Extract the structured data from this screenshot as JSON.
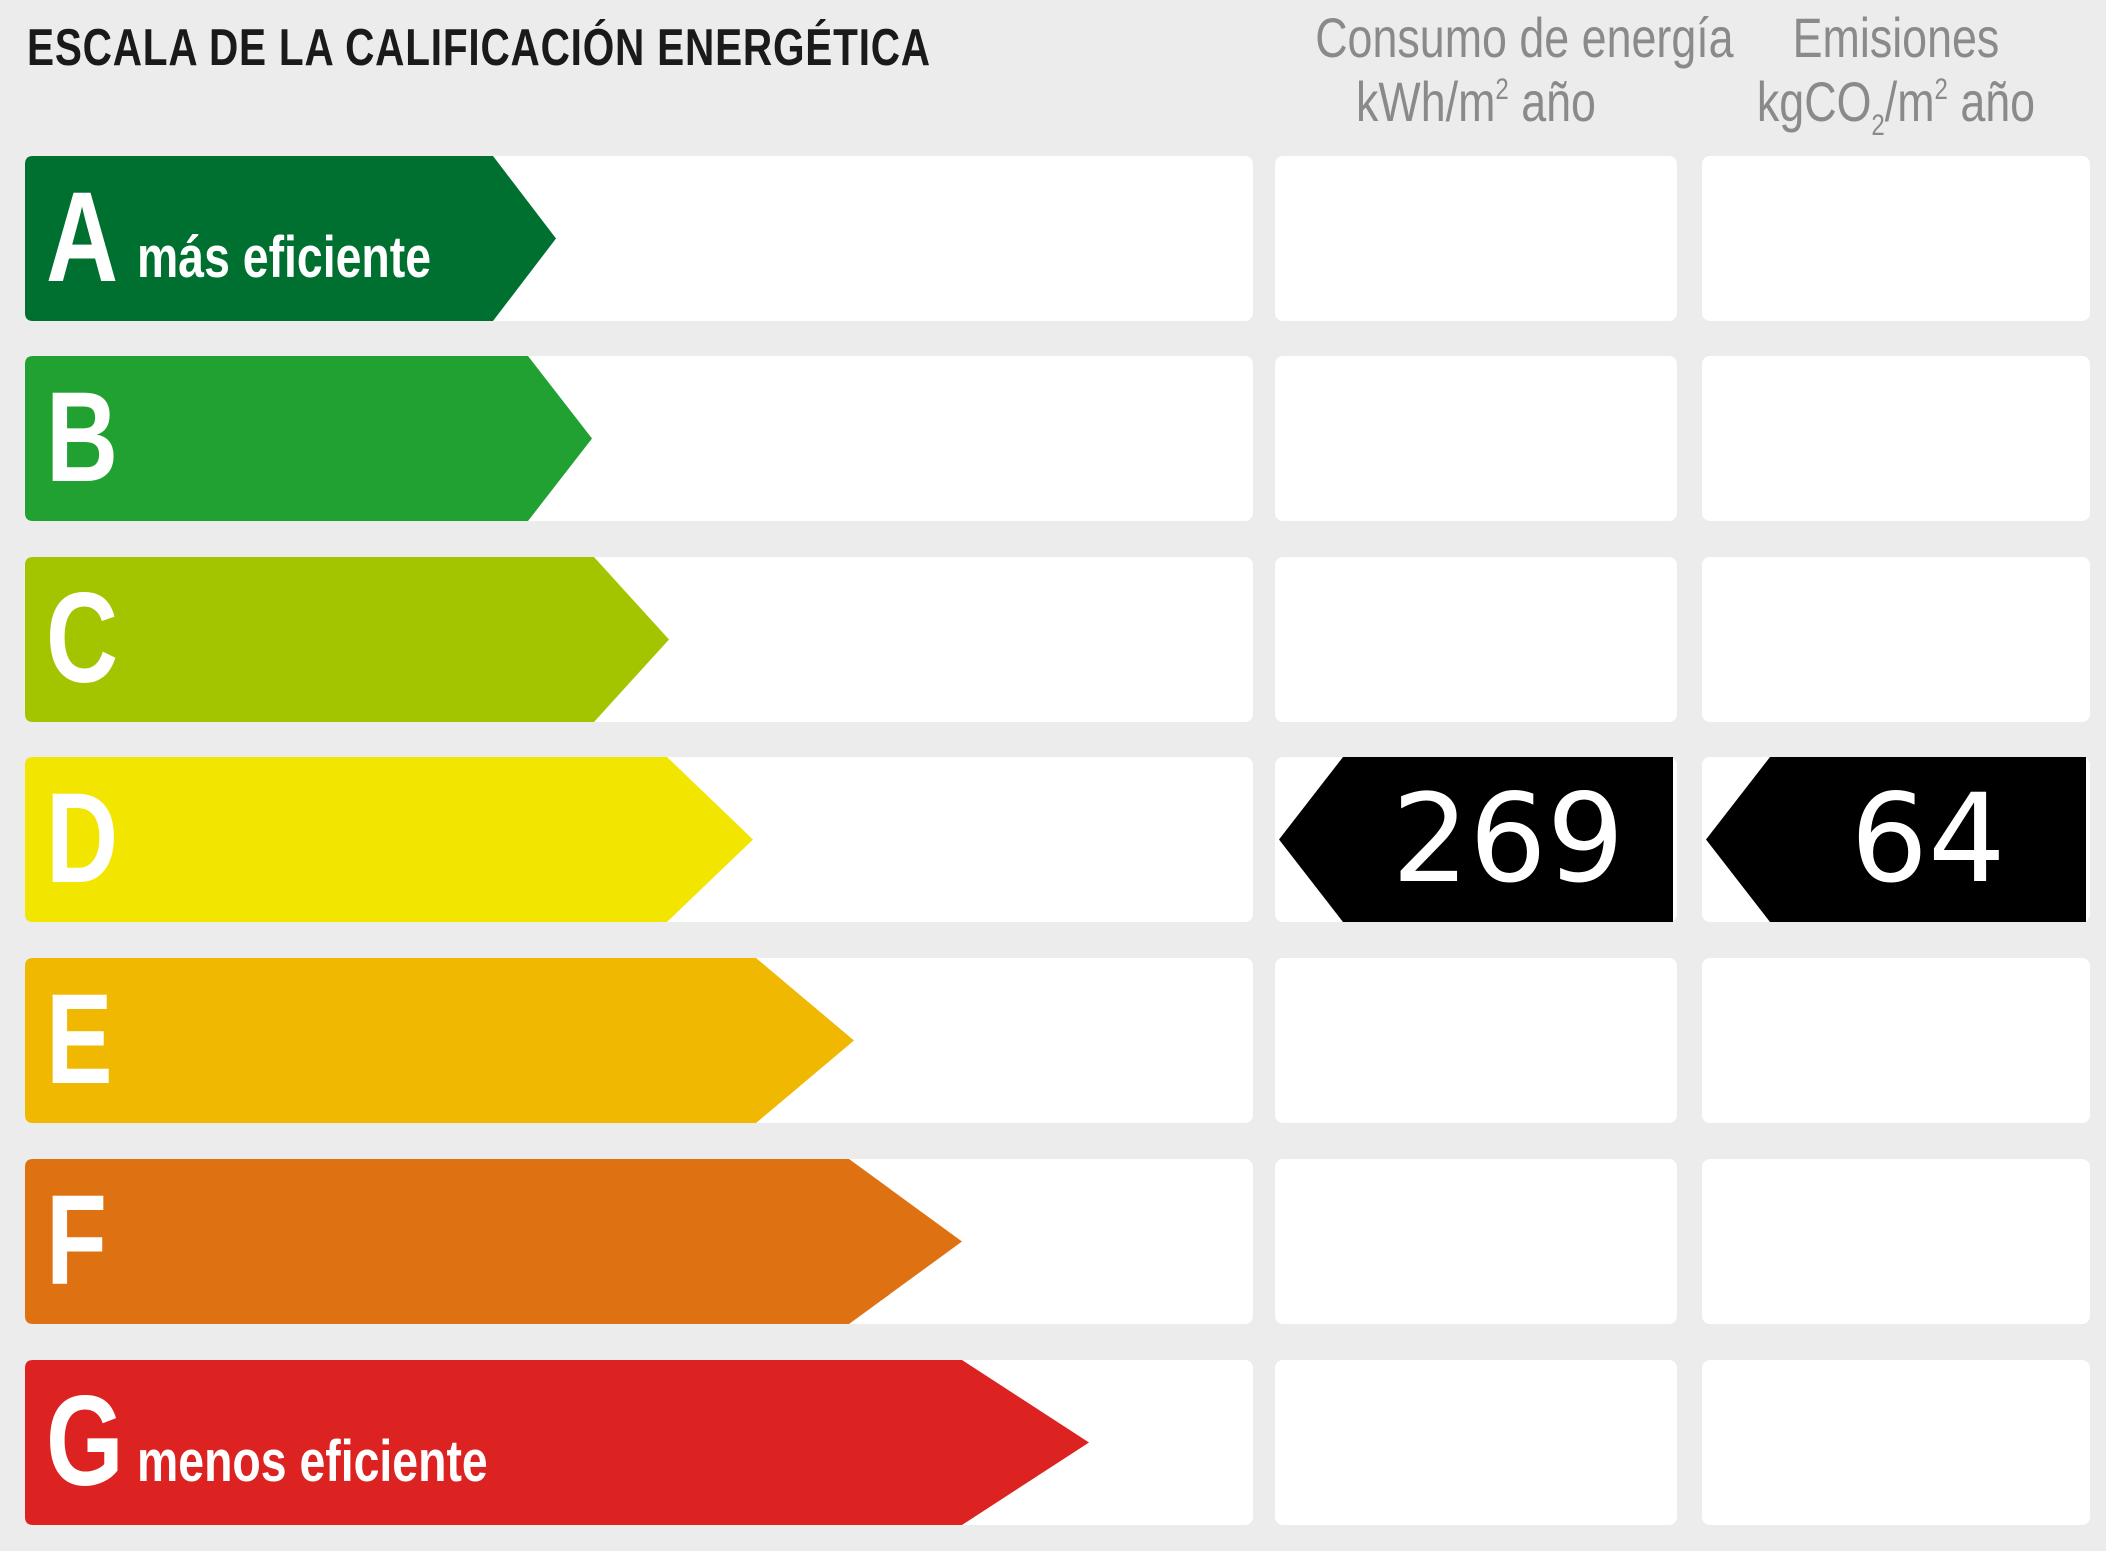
{
  "title": "ESCALA DE LA CALIFICACIÓN ENERGÉTICA",
  "columns": {
    "consumo": {
      "line1": "Consumo de energía",
      "unit_pre": "kWh/m",
      "unit_sup": "2",
      "unit_post": " año"
    },
    "emisiones": {
      "line1": "Emisiones",
      "unit_pre": "kgCO",
      "unit_sub": "2",
      "unit_mid": "/m",
      "unit_sup": "2",
      "unit_post": " año"
    }
  },
  "ratings": [
    {
      "letter": "A",
      "label": "más eficiente",
      "color": "#007030"
    },
    {
      "letter": "B",
      "label": "",
      "color": "#21a131"
    },
    {
      "letter": "C",
      "label": "",
      "color": "#a3c500"
    },
    {
      "letter": "D",
      "label": "",
      "color": "#f2e500"
    },
    {
      "letter": "E",
      "label": "",
      "color": "#f0b800"
    },
    {
      "letter": "F",
      "label": "",
      "color": "#de7212"
    },
    {
      "letter": "G",
      "label": "menos eficiente",
      "color": "#dc2322"
    }
  ],
  "current": {
    "rating": "D",
    "consumo": "269",
    "emisiones": "64",
    "indicator_color": "#000000"
  }
}
